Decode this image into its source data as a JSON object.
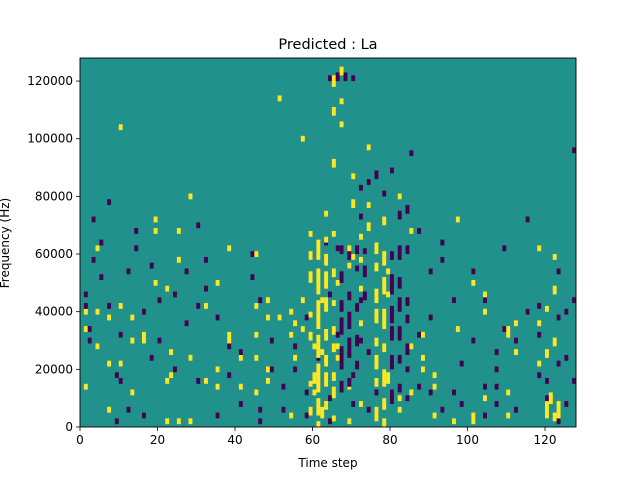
{
  "chart_data": {
    "type": "heatmap",
    "title": "Predicted : La",
    "xlabel": "Time step",
    "ylabel": "Frequency (Hz)",
    "xlim": [
      0,
      128
    ],
    "ylim": [
      0,
      128000
    ],
    "xticks": [
      0,
      20,
      40,
      60,
      80,
      100,
      120
    ],
    "yticks": [
      0,
      20000,
      40000,
      60000,
      80000,
      100000,
      120000
    ],
    "n_time_steps": 128,
    "n_freq_bins": 128,
    "colormap": "viridis",
    "levels": [
      -1,
      0,
      1
    ],
    "colors": {
      "-1": "#440154",
      "0": "#21918c",
      "1": "#fde725"
    },
    "background_level": 0,
    "cells": {
      "high": [
        [
          120,
          3
        ],
        [
          120,
          5
        ],
        [
          120,
          7
        ],
        [
          123,
          3
        ],
        [
          123,
          5
        ],
        [
          123,
          7
        ],
        [
          23,
          17
        ],
        [
          23,
          25
        ],
        [
          45,
          23
        ],
        [
          45,
          31
        ],
        [
          55,
          23
        ],
        [
          55,
          35
        ],
        [
          60,
          11
        ],
        [
          60,
          15
        ],
        [
          62,
          3
        ],
        [
          62,
          5
        ],
        [
          62,
          25
        ],
        [
          62,
          43
        ],
        [
          82,
          5
        ],
        [
          82,
          9
        ],
        [
          96,
          1
        ],
        [
          104,
          9
        ],
        [
          104,
          39
        ],
        [
          104,
          45
        ],
        [
          110,
          3
        ],
        [
          110,
          11
        ],
        [
          110,
          31
        ],
        [
          110,
          33
        ],
        [
          112,
          25
        ],
        [
          112,
          35
        ],
        [
          118,
          21
        ],
        [
          118,
          35
        ],
        [
          118,
          61
        ],
        [
          101,
          1
        ],
        [
          101,
          3
        ],
        [
          101,
          49
        ],
        [
          97,
          33
        ],
        [
          97,
          71
        ],
        [
          91,
          3
        ],
        [
          91,
          13
        ],
        [
          91,
          17
        ],
        [
          88,
          19
        ],
        [
          88,
          23
        ],
        [
          88,
          31
        ],
        [
          85,
          11
        ],
        [
          85,
          27
        ],
        [
          85,
          67
        ],
        [
          82,
          23
        ],
        [
          82,
          33
        ],
        [
          82,
          79
        ],
        [
          79,
          15
        ],
        [
          79,
          17
        ],
        [
          79,
          45
        ],
        [
          79,
          53
        ],
        [
          76,
          43
        ],
        [
          76,
          61
        ],
        [
          72,
          7
        ],
        [
          72,
          35
        ],
        [
          72,
          47
        ],
        [
          72,
          57
        ],
        [
          72,
          65
        ],
        [
          69,
          1
        ],
        [
          69,
          13
        ],
        [
          69,
          55
        ],
        [
          69,
          61
        ],
        [
          66,
          23
        ],
        [
          66,
          27
        ],
        [
          66,
          49
        ],
        [
          66,
          121
        ],
        [
          63,
          21
        ],
        [
          63,
          73
        ],
        [
          60,
          17
        ],
        [
          60,
          27
        ],
        [
          57,
          33
        ],
        [
          57,
          43
        ],
        [
          57,
          99
        ],
        [
          54,
          3
        ],
        [
          54,
          31
        ],
        [
          54,
          39
        ],
        [
          51,
          37
        ],
        [
          51,
          113
        ],
        [
          48,
          15
        ],
        [
          48,
          19
        ],
        [
          48,
          37
        ],
        [
          48,
          43
        ],
        [
          45,
          11
        ],
        [
          45,
          41
        ],
        [
          45,
          59
        ],
        [
          41,
          13
        ],
        [
          41,
          23
        ],
        [
          38,
          29
        ],
        [
          38,
          31
        ],
        [
          38,
          61
        ],
        [
          35,
          13
        ],
        [
          35,
          19
        ],
        [
          35,
          49
        ],
        [
          32,
          15
        ],
        [
          32,
          41
        ],
        [
          28,
          1
        ],
        [
          28,
          23
        ],
        [
          28,
          79
        ],
        [
          25,
          1
        ],
        [
          25,
          57
        ],
        [
          25,
          67
        ],
        [
          22,
          1
        ],
        [
          22,
          15
        ],
        [
          22,
          47
        ],
        [
          19,
          49
        ],
        [
          19,
          71
        ],
        [
          19,
          67
        ],
        [
          16,
          29
        ],
        [
          16,
          31
        ],
        [
          16,
          39
        ],
        [
          13,
          11
        ],
        [
          13,
          29
        ],
        [
          13,
          37
        ],
        [
          10,
          21
        ],
        [
          10,
          41
        ],
        [
          10,
          103
        ],
        [
          7,
          5
        ],
        [
          7,
          21
        ],
        [
          7,
          37
        ],
        [
          4,
          27
        ],
        [
          4,
          39
        ],
        [
          4,
          61
        ],
        [
          1,
          13
        ],
        [
          1,
          33
        ],
        [
          1,
          39
        ]
      ],
      "low": [
        [
          123,
          1
        ],
        [
          123,
          21
        ],
        [
          123,
          37
        ],
        [
          123,
          53
        ],
        [
          120,
          9
        ],
        [
          120,
          15
        ],
        [
          118,
          17
        ],
        [
          118,
          31
        ],
        [
          118,
          41
        ],
        [
          115,
          39
        ],
        [
          115,
          71
        ],
        [
          112,
          5
        ],
        [
          112,
          29
        ],
        [
          109,
          33
        ],
        [
          109,
          61
        ],
        [
          107,
          7
        ],
        [
          107,
          13
        ],
        [
          107,
          19
        ],
        [
          107,
          25
        ],
        [
          104,
          3
        ],
        [
          104,
          13
        ],
        [
          104,
          43
        ],
        [
          101,
          29
        ],
        [
          101,
          53
        ],
        [
          98,
          7
        ],
        [
          98,
          21
        ],
        [
          96,
          11
        ],
        [
          96,
          43
        ],
        [
          93,
          5
        ],
        [
          93,
          57
        ],
        [
          93,
          63
        ],
        [
          90,
          11
        ],
        [
          90,
          37
        ],
        [
          90,
          53
        ],
        [
          87,
          13
        ],
        [
          87,
          31
        ],
        [
          87,
          67
        ],
        [
          84,
          9
        ],
        [
          84,
          19
        ],
        [
          84,
          25
        ],
        [
          80,
          21
        ],
        [
          80,
          39
        ],
        [
          78,
          15
        ],
        [
          78,
          35
        ],
        [
          76,
          3
        ],
        [
          76,
          11
        ],
        [
          74,
          5
        ],
        [
          74,
          25
        ],
        [
          72,
          29
        ],
        [
          72,
          43
        ],
        [
          70,
          7
        ],
        [
          70,
          17
        ],
        [
          66,
          31
        ],
        [
          66,
          61
        ],
        [
          64,
          1
        ],
        [
          64,
          9
        ],
        [
          64,
          45
        ],
        [
          63,
          63
        ],
        [
          61,
          7
        ],
        [
          61,
          23
        ],
        [
          58,
          3
        ],
        [
          58,
          11
        ],
        [
          58,
          37
        ],
        [
          55,
          19
        ],
        [
          55,
          27
        ],
        [
          52,
          5
        ],
        [
          52,
          13
        ],
        [
          49,
          19
        ],
        [
          49,
          29
        ],
        [
          46,
          1
        ],
        [
          46,
          5
        ],
        [
          46,
          43
        ],
        [
          44,
          51
        ],
        [
          44,
          59
        ],
        [
          41,
          7
        ],
        [
          41,
          25
        ],
        [
          38,
          17
        ],
        [
          38,
          27
        ],
        [
          35,
          3
        ],
        [
          35,
          37
        ],
        [
          32,
          47
        ],
        [
          32,
          57
        ],
        [
          30,
          15
        ],
        [
          30,
          41
        ],
        [
          30,
          69
        ],
        [
          27,
          35
        ],
        [
          27,
          53
        ],
        [
          24,
          19
        ],
        [
          24,
          45
        ],
        [
          20,
          29
        ],
        [
          20,
          43
        ],
        [
          18,
          23
        ],
        [
          18,
          55
        ],
        [
          16,
          3
        ],
        [
          16,
          39
        ],
        [
          14,
          61
        ],
        [
          14,
          67
        ],
        [
          12,
          5
        ],
        [
          12,
          53
        ],
        [
          10,
          15
        ],
        [
          10,
          31
        ],
        [
          9,
          1
        ],
        [
          9,
          17
        ],
        [
          7,
          41
        ],
        [
          7,
          77
        ],
        [
          5,
          51
        ],
        [
          5,
          63
        ],
        [
          3,
          57
        ],
        [
          3,
          71
        ],
        [
          2,
          29
        ],
        [
          2,
          33
        ],
        [
          1,
          41
        ],
        [
          1,
          45
        ],
        [
          125,
          7
        ],
        [
          125,
          23
        ],
        [
          125,
          39
        ],
        [
          127,
          15
        ],
        [
          127,
          43
        ],
        [
          127,
          95
        ]
      ],
      "high_runs": [
        [
          59,
          4,
          3
        ],
        [
          59,
          14,
          2
        ],
        [
          59,
          30,
          3
        ],
        [
          59,
          38,
          2
        ],
        [
          59,
          50,
          4
        ],
        [
          59,
          58,
          3
        ],
        [
          59,
          66,
          2
        ],
        [
          61,
          0,
          2
        ],
        [
          61,
          4,
          6
        ],
        [
          61,
          12,
          10
        ],
        [
          61,
          24,
          8
        ],
        [
          61,
          34,
          10
        ],
        [
          61,
          46,
          9
        ],
        [
          61,
          58,
          7
        ],
        [
          63,
          6,
          3
        ],
        [
          63,
          14,
          5
        ],
        [
          63,
          22,
          3
        ],
        [
          63,
          30,
          4
        ],
        [
          63,
          40,
          5
        ],
        [
          63,
          48,
          6
        ],
        [
          63,
          56,
          4
        ],
        [
          63,
          64,
          2
        ],
        [
          65,
          2,
          2
        ],
        [
          65,
          10,
          4
        ],
        [
          65,
          16,
          3
        ],
        [
          65,
          26,
          3
        ],
        [
          65,
          32,
          3
        ],
        [
          65,
          42,
          2
        ],
        [
          65,
          52,
          3
        ],
        [
          65,
          66,
          2
        ],
        [
          65,
          90,
          3
        ],
        [
          65,
          108,
          3
        ],
        [
          65,
          118,
          4
        ],
        [
          76,
          2,
          5
        ],
        [
          76,
          14,
          3
        ],
        [
          76,
          20,
          5
        ],
        [
          76,
          28,
          3
        ],
        [
          76,
          36,
          5
        ],
        [
          76,
          44,
          4
        ],
        [
          76,
          54,
          3
        ],
        [
          76,
          60,
          4
        ],
        [
          78,
          0,
          3
        ],
        [
          78,
          6,
          4
        ],
        [
          78,
          14,
          6
        ],
        [
          78,
          26,
          3
        ],
        [
          78,
          34,
          7
        ],
        [
          78,
          46,
          6
        ],
        [
          78,
          56,
          5
        ],
        [
          78,
          70,
          3
        ],
        [
          74,
          68,
          3
        ],
        [
          74,
          76,
          2
        ],
        [
          74,
          96,
          2
        ],
        [
          70,
          58,
          2
        ],
        [
          70,
          76,
          3
        ],
        [
          70,
          86,
          2
        ],
        [
          67,
          104,
          2
        ],
        [
          67,
          112,
          2
        ],
        [
          120,
          6,
          3
        ],
        [
          120,
          24,
          3
        ],
        [
          120,
          40,
          2
        ],
        [
          121,
          8,
          4
        ],
        [
          122,
          2,
          3
        ],
        [
          122,
          28,
          3
        ],
        [
          122,
          46,
          3
        ],
        [
          122,
          58,
          2
        ],
        [
          67,
          122,
          3
        ]
      ],
      "low_runs": [
        [
          67,
          12,
          4
        ],
        [
          67,
          20,
          8
        ],
        [
          67,
          32,
          6
        ],
        [
          67,
          40,
          4
        ],
        [
          67,
          50,
          4
        ],
        [
          67,
          60,
          3
        ],
        [
          69,
          14,
          3
        ],
        [
          69,
          24,
          7
        ],
        [
          69,
          34,
          6
        ],
        [
          69,
          44,
          3
        ],
        [
          69,
          58,
          3
        ],
        [
          71,
          20,
          3
        ],
        [
          71,
          28,
          4
        ],
        [
          71,
          40,
          3
        ],
        [
          71,
          54,
          2
        ],
        [
          71,
          60,
          3
        ],
        [
          72,
          72,
          2
        ],
        [
          73,
          44,
          3
        ],
        [
          73,
          52,
          4
        ],
        [
          73,
          60,
          2
        ],
        [
          80,
          8,
          5
        ],
        [
          80,
          20,
          5
        ],
        [
          80,
          30,
          5
        ],
        [
          80,
          36,
          6
        ],
        [
          80,
          46,
          7
        ],
        [
          80,
          58,
          3
        ],
        [
          82,
          12,
          3
        ],
        [
          82,
          22,
          3
        ],
        [
          82,
          30,
          5
        ],
        [
          82,
          40,
          5
        ],
        [
          82,
          48,
          4
        ],
        [
          82,
          58,
          5
        ],
        [
          82,
          72,
          3
        ],
        [
          84,
          26,
          3
        ],
        [
          84,
          36,
          3
        ],
        [
          84,
          42,
          3
        ],
        [
          84,
          60,
          3
        ],
        [
          84,
          74,
          3
        ],
        [
          64,
          120,
          2
        ],
        [
          66,
          120,
          3
        ],
        [
          68,
          120,
          3
        ],
        [
          70,
          120,
          2
        ],
        [
          85,
          94,
          2
        ],
        [
          72,
          82,
          2
        ],
        [
          74,
          84,
          2
        ],
        [
          76,
          86,
          3
        ],
        [
          78,
          80,
          2
        ],
        [
          80,
          88,
          2
        ]
      ]
    }
  }
}
